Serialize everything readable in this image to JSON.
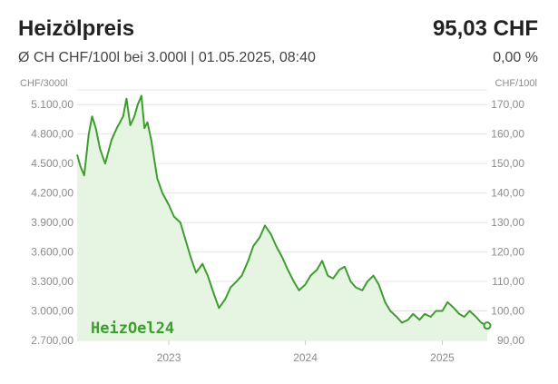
{
  "header": {
    "title": "Heizölpreis",
    "price": "95,03 CHF",
    "subtitle": "Ø CH CHF/100l bei 3.000l | 01.05.2025, 08:40",
    "change": "0,00 %"
  },
  "watermark": "HeizOel24",
  "colors": {
    "line": "#3e9d2f",
    "area": "#e6f4e2",
    "grid": "#e4e4e4",
    "tick": "#8c8c8c"
  },
  "chart_data": {
    "type": "area",
    "title": "",
    "left_axis": {
      "unit": "CHF/3000l",
      "ticks": [
        "5.100,00",
        "4.800,00",
        "4.500,00",
        "4.200,00",
        "3.900,00",
        "3.600,00",
        "3.300,00",
        "3.000,00",
        "2.700,00"
      ],
      "range": [
        2700,
        5250
      ]
    },
    "right_axis": {
      "unit": "CHF/100l",
      "ticks": [
        "170,00",
        "160,00",
        "150,00",
        "140,00",
        "130,00",
        "120,00",
        "110,00",
        "100,00",
        "90,00"
      ],
      "range": [
        90,
        175
      ]
    },
    "x_axis": {
      "ticks": [
        "2023",
        "2024",
        "2025"
      ],
      "range": [
        "2022-05-01",
        "2025-05-01"
      ]
    },
    "grid": true,
    "series": [
      {
        "unit": "CHF/100l",
        "points": [
          [
            "2022-05-01",
            153
          ],
          [
            "2022-05-10",
            149
          ],
          [
            "2022-05-20",
            146
          ],
          [
            "2022-06-01",
            160
          ],
          [
            "2022-06-10",
            166
          ],
          [
            "2022-06-20",
            162
          ],
          [
            "2022-07-01",
            155
          ],
          [
            "2022-07-15",
            150
          ],
          [
            "2022-08-01",
            158
          ],
          [
            "2022-08-15",
            162
          ],
          [
            "2022-09-01",
            166
          ],
          [
            "2022-09-10",
            172
          ],
          [
            "2022-09-20",
            163
          ],
          [
            "2022-10-01",
            166
          ],
          [
            "2022-10-10",
            170
          ],
          [
            "2022-10-20",
            173
          ],
          [
            "2022-10-28",
            162
          ],
          [
            "2022-11-05",
            164
          ],
          [
            "2022-11-15",
            158
          ],
          [
            "2022-12-01",
            145
          ],
          [
            "2022-12-15",
            140
          ],
          [
            "2023-01-01",
            136
          ],
          [
            "2023-01-15",
            132
          ],
          [
            "2023-02-01",
            130
          ],
          [
            "2023-02-15",
            124
          ],
          [
            "2023-03-01",
            118
          ],
          [
            "2023-03-15",
            113
          ],
          [
            "2023-04-01",
            116
          ],
          [
            "2023-04-15",
            112
          ],
          [
            "2023-05-01",
            106
          ],
          [
            "2023-05-15",
            101
          ],
          [
            "2023-06-01",
            104
          ],
          [
            "2023-06-15",
            108
          ],
          [
            "2023-07-01",
            110
          ],
          [
            "2023-07-15",
            112
          ],
          [
            "2023-08-01",
            117
          ],
          [
            "2023-08-15",
            122
          ],
          [
            "2023-09-01",
            125
          ],
          [
            "2023-09-15",
            129
          ],
          [
            "2023-10-01",
            126
          ],
          [
            "2023-10-15",
            122
          ],
          [
            "2023-11-01",
            118
          ],
          [
            "2023-11-15",
            114
          ],
          [
            "2023-12-01",
            110
          ],
          [
            "2023-12-15",
            107
          ],
          [
            "2024-01-01",
            109
          ],
          [
            "2024-01-15",
            112
          ],
          [
            "2024-02-01",
            114
          ],
          [
            "2024-02-15",
            117
          ],
          [
            "2024-03-01",
            112
          ],
          [
            "2024-03-15",
            111
          ],
          [
            "2024-04-01",
            114
          ],
          [
            "2024-04-15",
            115
          ],
          [
            "2024-05-01",
            110
          ],
          [
            "2024-05-15",
            108
          ],
          [
            "2024-06-01",
            107
          ],
          [
            "2024-06-15",
            110
          ],
          [
            "2024-07-01",
            112
          ],
          [
            "2024-07-15",
            109
          ],
          [
            "2024-08-01",
            103
          ],
          [
            "2024-08-15",
            100
          ],
          [
            "2024-09-01",
            98
          ],
          [
            "2024-09-15",
            96
          ],
          [
            "2024-10-01",
            97
          ],
          [
            "2024-10-15",
            99
          ],
          [
            "2024-11-01",
            97
          ],
          [
            "2024-11-15",
            99
          ],
          [
            "2024-12-01",
            98
          ],
          [
            "2024-12-15",
            100
          ],
          [
            "2025-01-01",
            100
          ],
          [
            "2025-01-15",
            103
          ],
          [
            "2025-02-01",
            101
          ],
          [
            "2025-02-15",
            99
          ],
          [
            "2025-03-01",
            98
          ],
          [
            "2025-03-15",
            100
          ],
          [
            "2025-04-01",
            98
          ],
          [
            "2025-04-15",
            96
          ],
          [
            "2025-05-01",
            95.03
          ]
        ]
      }
    ]
  }
}
